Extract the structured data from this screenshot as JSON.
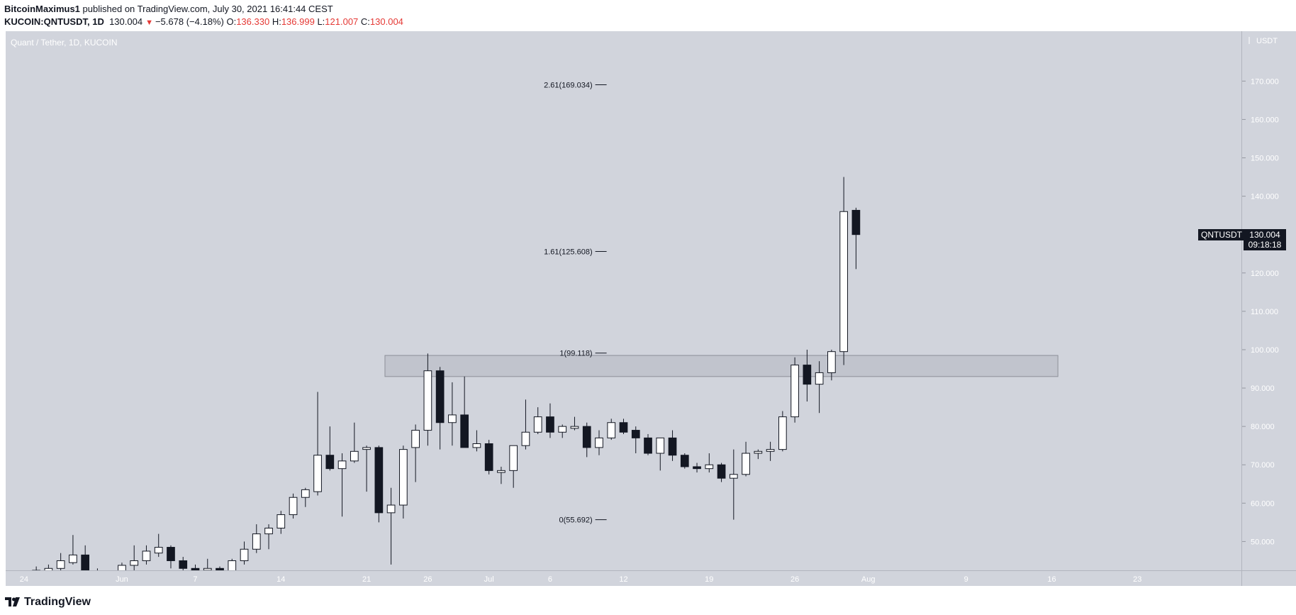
{
  "header": {
    "author": "BitcoinMaximus1",
    "published_text": "published on TradingView.com, July 30, 2021 16:41:44 CEST",
    "symbol": "KUCOIN:QNTUSDT, 1D",
    "last": "130.004",
    "change": "−5.678 (−4.18%)",
    "o_label": "O:",
    "o_value": "136.330",
    "h_label": "H:",
    "h_value": "136.999",
    "l_label": "L:",
    "l_value": "121.007",
    "c_label": "C:",
    "c_value": "130.004"
  },
  "colors": {
    "pane_bg": "#d1d4dc",
    "up_body": "#ffffff",
    "down_body": "#131722",
    "wick": "#131722",
    "zone_fill": "#c1c4cd",
    "zone_border": "#8c8f98",
    "change_red": "#e53935"
  },
  "brand": {
    "name": "TradingView",
    "icon": "tradingview-logo-icon"
  },
  "chart_data": {
    "type": "candlestick",
    "title": "Quant / Tether, 1D, KUCOIN",
    "currency": "USDT",
    "ylim": [
      42.5,
      183
    ],
    "y_ticks": [
      {
        "value": 50,
        "label": "50.000"
      },
      {
        "value": 60,
        "label": "60.000"
      },
      {
        "value": 70,
        "label": "70.000"
      },
      {
        "value": 80,
        "label": "80.000"
      },
      {
        "value": 90,
        "label": "90.000"
      },
      {
        "value": 100,
        "label": "100.000"
      },
      {
        "value": 110,
        "label": "110.000"
      },
      {
        "value": 120,
        "label": "120.000"
      },
      {
        "value": 130,
        "label": "130.000"
      },
      {
        "value": 140,
        "label": "140.000"
      },
      {
        "value": 150,
        "label": "150.000"
      },
      {
        "value": 160,
        "label": "160.000"
      },
      {
        "value": 170,
        "label": "170.000"
      }
    ],
    "x_ticks": [
      {
        "date": "2021-05-24",
        "label": "24"
      },
      {
        "date": "2021-06-01",
        "label": "Jun"
      },
      {
        "date": "2021-06-07",
        "label": "7"
      },
      {
        "date": "2021-06-14",
        "label": "14"
      },
      {
        "date": "2021-06-21",
        "label": "21"
      },
      {
        "date": "2021-06-26",
        "label": "26"
      },
      {
        "date": "2021-07-01",
        "label": "Jul"
      },
      {
        "date": "2021-07-06",
        "label": "6"
      },
      {
        "date": "2021-07-12",
        "label": "12"
      },
      {
        "date": "2021-07-19",
        "label": "19"
      },
      {
        "date": "2021-07-26",
        "label": "26"
      },
      {
        "date": "2021-08-01",
        "label": "Aug"
      },
      {
        "date": "2021-08-09",
        "label": "9"
      },
      {
        "date": "2021-08-16",
        "label": "16"
      },
      {
        "date": "2021-08-23",
        "label": "23"
      }
    ],
    "xlim": [
      "2021-05-23",
      "2021-09-01"
    ],
    "candles": [
      {
        "date": "2021-05-25",
        "o": 42.0,
        "h": 43.5,
        "l": 40.0,
        "c": 42.5
      },
      {
        "date": "2021-05-26",
        "o": 42.0,
        "h": 44.0,
        "l": 40.0,
        "c": 43.0
      },
      {
        "date": "2021-05-27",
        "o": 43.0,
        "h": 47.0,
        "l": 41.0,
        "c": 45.0
      },
      {
        "date": "2021-05-28",
        "o": 44.5,
        "h": 51.7,
        "l": 44.0,
        "c": 46.5
      },
      {
        "date": "2021-05-29",
        "o": 46.5,
        "h": 49.0,
        "l": 40.0,
        "c": 42.0
      },
      {
        "date": "2021-05-30",
        "o": 42.0,
        "h": 43.0,
        "l": 38.0,
        "c": 41.0
      },
      {
        "date": "2021-05-31",
        "o": 41.0,
        "h": 42.5,
        "l": 39.0,
        "c": 42.0
      },
      {
        "date": "2021-06-01",
        "o": 42.0,
        "h": 44.5,
        "l": 41.0,
        "c": 43.8
      },
      {
        "date": "2021-06-02",
        "o": 43.8,
        "h": 49.0,
        "l": 42.5,
        "c": 45.0
      },
      {
        "date": "2021-06-03",
        "o": 45.0,
        "h": 49.0,
        "l": 44.0,
        "c": 47.5
      },
      {
        "date": "2021-06-04",
        "o": 47.0,
        "h": 52.0,
        "l": 46.0,
        "c": 48.5
      },
      {
        "date": "2021-06-05",
        "o": 48.5,
        "h": 49.0,
        "l": 43.0,
        "c": 45.0
      },
      {
        "date": "2021-06-06",
        "o": 45.0,
        "h": 46.0,
        "l": 42.0,
        "c": 43.0
      },
      {
        "date": "2021-06-07",
        "o": 43.0,
        "h": 44.0,
        "l": 41.5,
        "c": 42.5
      },
      {
        "date": "2021-06-08",
        "o": 42.5,
        "h": 45.5,
        "l": 41.0,
        "c": 43.0
      },
      {
        "date": "2021-06-09",
        "o": 43.0,
        "h": 43.5,
        "l": 40.0,
        "c": 42.0
      },
      {
        "date": "2021-06-10",
        "o": 42.0,
        "h": 45.5,
        "l": 41.5,
        "c": 45.0
      },
      {
        "date": "2021-06-11",
        "o": 45.0,
        "h": 50.0,
        "l": 44.0,
        "c": 48.0
      },
      {
        "date": "2021-06-12",
        "o": 48.0,
        "h": 54.5,
        "l": 47.0,
        "c": 52.0
      },
      {
        "date": "2021-06-13",
        "o": 52.0,
        "h": 54.5,
        "l": 48.0,
        "c": 53.5
      },
      {
        "date": "2021-06-14",
        "o": 53.5,
        "h": 58.0,
        "l": 52.0,
        "c": 57.0
      },
      {
        "date": "2021-06-15",
        "o": 57.0,
        "h": 62.5,
        "l": 56.0,
        "c": 61.5
      },
      {
        "date": "2021-06-16",
        "o": 61.5,
        "h": 64.0,
        "l": 59.0,
        "c": 63.5
      },
      {
        "date": "2021-06-17",
        "o": 63.0,
        "h": 89.0,
        "l": 62.0,
        "c": 72.5
      },
      {
        "date": "2021-06-18",
        "o": 72.5,
        "h": 80.0,
        "l": 68.5,
        "c": 69.0
      },
      {
        "date": "2021-06-19",
        "o": 69.0,
        "h": 73.0,
        "l": 56.5,
        "c": 71.0
      },
      {
        "date": "2021-06-20",
        "o": 71.0,
        "h": 81.0,
        "l": 70.5,
        "c": 73.5
      },
      {
        "date": "2021-06-21",
        "o": 74.0,
        "h": 75.0,
        "l": 63.0,
        "c": 74.5
      },
      {
        "date": "2021-06-22",
        "o": 74.5,
        "h": 75.0,
        "l": 55.0,
        "c": 57.5
      },
      {
        "date": "2021-06-23",
        "o": 57.5,
        "h": 64.0,
        "l": 44.0,
        "c": 59.5
      },
      {
        "date": "2021-06-24",
        "o": 59.5,
        "h": 75.0,
        "l": 56.0,
        "c": 74.0
      },
      {
        "date": "2021-06-25",
        "o": 74.5,
        "h": 80.5,
        "l": 65.5,
        "c": 79.0
      },
      {
        "date": "2021-06-26",
        "o": 79.0,
        "h": 99.0,
        "l": 75.0,
        "c": 94.5
      },
      {
        "date": "2021-06-27",
        "o": 94.5,
        "h": 95.5,
        "l": 74.0,
        "c": 81.0
      },
      {
        "date": "2021-06-28",
        "o": 81.0,
        "h": 91.5,
        "l": 75.0,
        "c": 83.0
      },
      {
        "date": "2021-06-29",
        "o": 83.0,
        "h": 93.0,
        "l": 74.5,
        "c": 74.5
      },
      {
        "date": "2021-06-30",
        "o": 74.5,
        "h": 79.0,
        "l": 73.5,
        "c": 75.5
      },
      {
        "date": "2021-07-01",
        "o": 75.5,
        "h": 76.5,
        "l": 67.5,
        "c": 68.5
      },
      {
        "date": "2021-07-02",
        "o": 68.0,
        "h": 69.5,
        "l": 65.0,
        "c": 68.5
      },
      {
        "date": "2021-07-03",
        "o": 68.5,
        "h": 75.0,
        "l": 64.0,
        "c": 75.0
      },
      {
        "date": "2021-07-04",
        "o": 75.0,
        "h": 87.0,
        "l": 74.0,
        "c": 78.5
      },
      {
        "date": "2021-07-05",
        "o": 78.5,
        "h": 85.0,
        "l": 78.0,
        "c": 82.5
      },
      {
        "date": "2021-07-06",
        "o": 82.5,
        "h": 86.0,
        "l": 77.0,
        "c": 78.5
      },
      {
        "date": "2021-07-07",
        "o": 78.5,
        "h": 80.5,
        "l": 77.0,
        "c": 80.0
      },
      {
        "date": "2021-07-08",
        "o": 79.5,
        "h": 82.5,
        "l": 79.0,
        "c": 80.0
      },
      {
        "date": "2021-07-09",
        "o": 80.0,
        "h": 81.0,
        "l": 72.0,
        "c": 74.5
      },
      {
        "date": "2021-07-10",
        "o": 74.5,
        "h": 79.0,
        "l": 72.5,
        "c": 77.0
      },
      {
        "date": "2021-07-11",
        "o": 77.0,
        "h": 82.0,
        "l": 76.5,
        "c": 81.0
      },
      {
        "date": "2021-07-12",
        "o": 81.0,
        "h": 82.0,
        "l": 78.0,
        "c": 78.5
      },
      {
        "date": "2021-07-13",
        "o": 79.0,
        "h": 80.0,
        "l": 73.0,
        "c": 77.0
      },
      {
        "date": "2021-07-14",
        "o": 77.0,
        "h": 78.0,
        "l": 72.5,
        "c": 73.0
      },
      {
        "date": "2021-07-15",
        "o": 73.0,
        "h": 77.0,
        "l": 68.5,
        "c": 77.0
      },
      {
        "date": "2021-07-16",
        "o": 77.0,
        "h": 79.0,
        "l": 71.0,
        "c": 72.5
      },
      {
        "date": "2021-07-17",
        "o": 72.5,
        "h": 73.0,
        "l": 69.0,
        "c": 69.5
      },
      {
        "date": "2021-07-18",
        "o": 69.5,
        "h": 70.5,
        "l": 68.0,
        "c": 69.0
      },
      {
        "date": "2021-07-19",
        "o": 69.0,
        "h": 73.0,
        "l": 68.0,
        "c": 70.0
      },
      {
        "date": "2021-07-20",
        "o": 70.0,
        "h": 70.5,
        "l": 65.5,
        "c": 66.5
      },
      {
        "date": "2021-07-21",
        "o": 66.5,
        "h": 74.0,
        "l": 55.7,
        "c": 67.5
      },
      {
        "date": "2021-07-22",
        "o": 67.5,
        "h": 76.0,
        "l": 67.0,
        "c": 73.0
      },
      {
        "date": "2021-07-23",
        "o": 73.0,
        "h": 74.0,
        "l": 71.5,
        "c": 73.5
      },
      {
        "date": "2021-07-24",
        "o": 73.5,
        "h": 76.0,
        "l": 71.0,
        "c": 74.0
      },
      {
        "date": "2021-07-25",
        "o": 74.0,
        "h": 84.0,
        "l": 73.5,
        "c": 82.5
      },
      {
        "date": "2021-07-26",
        "o": 82.5,
        "h": 98.0,
        "l": 81.0,
        "c": 96.0
      },
      {
        "date": "2021-07-27",
        "o": 96.0,
        "h": 100.0,
        "l": 86.5,
        "c": 91.0
      },
      {
        "date": "2021-07-28",
        "o": 91.0,
        "h": 97.0,
        "l": 83.5,
        "c": 94.0
      },
      {
        "date": "2021-07-29",
        "o": 94.0,
        "h": 100.0,
        "l": 92.0,
        "c": 99.5
      },
      {
        "date": "2021-07-30",
        "o": 99.5,
        "h": 145.0,
        "l": 96.0,
        "c": 136.0
      },
      {
        "date": "2021-07-31",
        "o": 136.33,
        "h": 136.999,
        "l": 121.007,
        "c": 130.004
      }
    ],
    "fib_levels": [
      {
        "label": "2.61(169.034)",
        "value": 169.034
      },
      {
        "label": "1.61(125.608)",
        "value": 125.608
      },
      {
        "label": "1(99.118)",
        "value": 99.118
      },
      {
        "label": "0(55.692)",
        "value": 55.692
      }
    ],
    "resistance_zone": {
      "from_date": "2021-06-23",
      "to_date": "2021-08-17",
      "low": 93.0,
      "high": 98.5
    },
    "last_price": {
      "symbol": "QNTUSDT",
      "value": 130.004,
      "label": "130.004",
      "countdown": "09:18:18"
    }
  }
}
